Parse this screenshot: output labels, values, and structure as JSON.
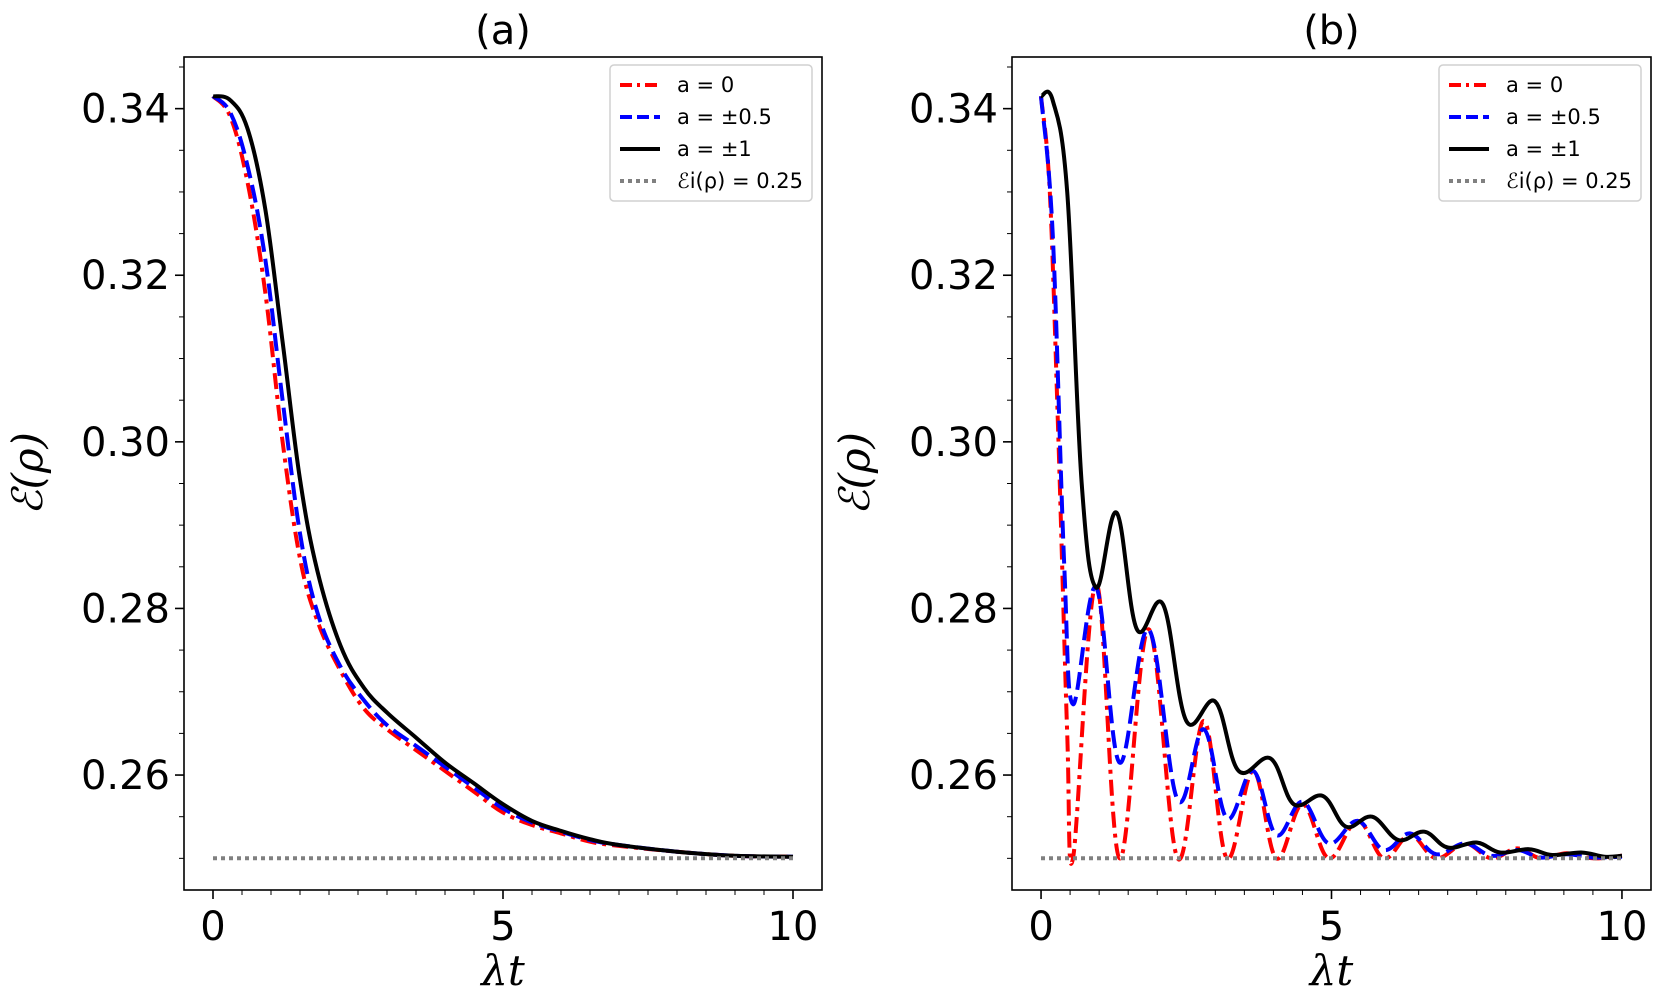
{
  "chart_data": [
    {
      "type": "line",
      "title": "(a)",
      "xlabel": "λt",
      "ylabel": "ℰ(ρ)",
      "xlim": [
        -0.5,
        10.5
      ],
      "ylim": [
        0.2462,
        0.3462
      ],
      "xticks": [
        "0",
        "5",
        "10"
      ],
      "yticks": [
        "0.26",
        "0.28",
        "0.30",
        "0.32",
        "0.34"
      ],
      "legend_position": "top-right",
      "series": [
        {
          "name": "a = 0",
          "color": "#ff0000",
          "style": "dashdot",
          "x": [
            0,
            0.3,
            0.6,
            0.9,
            1.2,
            1.5,
            1.8,
            2.2,
            2.6,
            3.0,
            3.5,
            4.0,
            4.5,
            5.0,
            5.5,
            6.0,
            6.5,
            7.0,
            8.0,
            9.0,
            10.0
          ],
          "y": [
            0.3415,
            0.339,
            0.331,
            0.318,
            0.3,
            0.286,
            0.2785,
            0.2725,
            0.268,
            0.2655,
            0.263,
            0.2605,
            0.258,
            0.2555,
            0.254,
            0.253,
            0.252,
            0.2515,
            0.2508,
            0.2503,
            0.2502
          ]
        },
        {
          "name": "a = ±0.5",
          "color": "#0000ff",
          "style": "dashed",
          "x": [
            0,
            0.3,
            0.6,
            0.9,
            1.2,
            1.5,
            1.8,
            2.2,
            2.6,
            3.0,
            3.5,
            4.0,
            4.5,
            5.0,
            5.5,
            6.0,
            6.5,
            7.0,
            8.0,
            9.0,
            10.0
          ],
          "y": [
            0.3415,
            0.3395,
            0.333,
            0.322,
            0.305,
            0.289,
            0.2795,
            0.273,
            0.269,
            0.266,
            0.2635,
            0.261,
            0.2585,
            0.256,
            0.2543,
            0.2532,
            0.2522,
            0.2516,
            0.2508,
            0.2503,
            0.2502
          ]
        },
        {
          "name": "a = ±1",
          "color": "#000000",
          "style": "solid",
          "x": [
            0,
            0.3,
            0.6,
            0.9,
            1.2,
            1.5,
            1.8,
            2.2,
            2.6,
            3.0,
            3.5,
            4.0,
            4.5,
            5.0,
            5.5,
            6.0,
            6.5,
            7.0,
            8.0,
            9.0,
            10.0
          ],
          "y": [
            0.3415,
            0.341,
            0.3375,
            0.328,
            0.312,
            0.2955,
            0.2845,
            0.2755,
            0.2705,
            0.2675,
            0.2645,
            0.2615,
            0.259,
            0.2565,
            0.2545,
            0.2533,
            0.2523,
            0.2516,
            0.2508,
            0.2503,
            0.2502
          ]
        },
        {
          "name": "ℰi(ρ) = 0.25",
          "color": "#808080",
          "style": "dotted",
          "x": [
            0,
            10
          ],
          "y": [
            0.25,
            0.25
          ]
        }
      ]
    },
    {
      "type": "line",
      "title": "(b)",
      "xlabel": "λt",
      "ylabel": "ℰ(ρ)",
      "xlim": [
        -0.5,
        10.5
      ],
      "ylim": [
        0.2462,
        0.3462
      ],
      "xticks": [
        "0",
        "5",
        "10"
      ],
      "yticks": [
        "0.26",
        "0.28",
        "0.30",
        "0.32",
        "0.34"
      ],
      "legend_position": "top-right",
      "series": [
        {
          "name": "a = 0",
          "color": "#ff0000",
          "style": "dashdot",
          "x": [
            0,
            0.15,
            0.3,
            0.45,
            0.55,
            0.95,
            1.35,
            1.85,
            2.35,
            2.8,
            3.2,
            3.65,
            4.05,
            4.5,
            4.95,
            5.45,
            5.9,
            6.35,
            6.8,
            7.3,
            7.75,
            8.2,
            8.6,
            9.05,
            9.5,
            10.0
          ],
          "y": [
            0.3415,
            0.33,
            0.3,
            0.265,
            0.25,
            0.283,
            0.25,
            0.2775,
            0.25,
            0.2665,
            0.25,
            0.2605,
            0.25,
            0.2565,
            0.25,
            0.2545,
            0.25,
            0.2528,
            0.25,
            0.2518,
            0.25,
            0.2512,
            0.25,
            0.2506,
            0.25,
            0.2503
          ]
        },
        {
          "name": "a = ±0.5",
          "color": "#0000ff",
          "style": "dashed",
          "x": [
            0,
            0.2,
            0.4,
            0.55,
            0.95,
            1.35,
            1.85,
            2.35,
            2.8,
            3.2,
            3.65,
            4.05,
            4.5,
            4.95,
            5.45,
            5.9,
            6.35,
            6.8,
            7.3,
            7.75,
            8.2,
            8.6,
            9.05,
            9.5,
            10.0
          ],
          "y": [
            0.3415,
            0.325,
            0.285,
            0.2685,
            0.2825,
            0.2615,
            0.2775,
            0.257,
            0.2655,
            0.2548,
            0.2605,
            0.2528,
            0.2568,
            0.2518,
            0.2545,
            0.251,
            0.253,
            0.2505,
            0.2518,
            0.2503,
            0.251,
            0.2501,
            0.2505,
            0.2501,
            0.2502
          ]
        },
        {
          "name": "a = ±1",
          "color": "#000000",
          "style": "solid",
          "x": [
            0,
            0.2,
            0.45,
            0.7,
            0.95,
            1.3,
            1.65,
            2.1,
            2.5,
            3.0,
            3.4,
            3.95,
            4.35,
            4.85,
            5.25,
            5.7,
            6.15,
            6.6,
            7.0,
            7.5,
            7.9,
            8.4,
            8.8,
            9.3,
            9.7,
            10.0
          ],
          "y": [
            0.3415,
            0.341,
            0.33,
            0.295,
            0.2825,
            0.2915,
            0.2775,
            0.2805,
            0.2665,
            0.2688,
            0.2605,
            0.262,
            0.2565,
            0.2575,
            0.2538,
            0.255,
            0.2522,
            0.2532,
            0.2513,
            0.2519,
            0.2507,
            0.2511,
            0.2504,
            0.2507,
            0.2502,
            0.2503
          ]
        },
        {
          "name": "ℰi(ρ) = 0.25",
          "color": "#808080",
          "style": "dotted",
          "x": [
            0,
            10
          ],
          "y": [
            0.25,
            0.25
          ]
        }
      ]
    }
  ]
}
